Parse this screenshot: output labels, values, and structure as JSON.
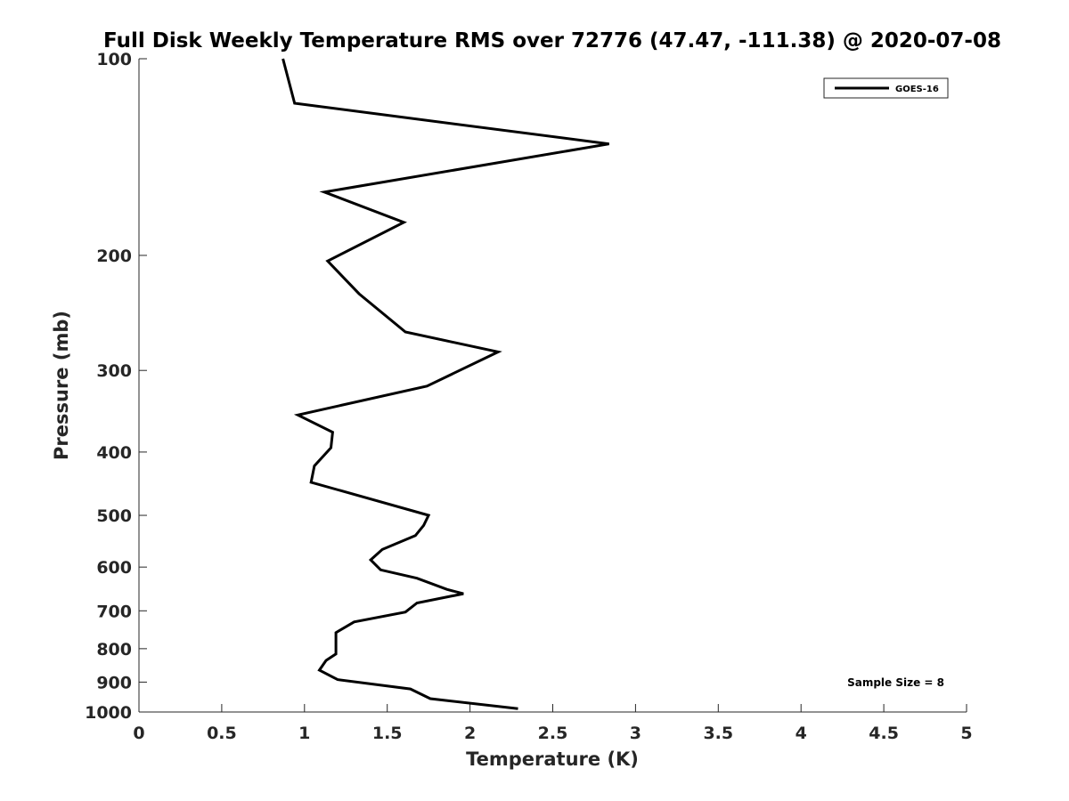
{
  "chart_data": {
    "type": "line",
    "title": "Full Disk Weekly Temperature RMS over 72776 (47.47, -111.38) @ 2020-07-08",
    "xlabel": "Temperature (K)",
    "ylabel": "Pressure (mb)",
    "xlim": [
      0,
      5
    ],
    "ylim": [
      1000,
      100
    ],
    "yscale": "log",
    "y_reversed": true,
    "x_ticks": [
      "0",
      "0.5",
      "1",
      "1.5",
      "2",
      "2.5",
      "3",
      "3.5",
      "4",
      "4.5",
      "5"
    ],
    "y_ticks": [
      "100",
      "200",
      "300",
      "400",
      "500",
      "600",
      "700",
      "800",
      "900",
      "1000"
    ],
    "grid": false,
    "legend_position": "top-right",
    "annotation": "Sample Size = 8",
    "series": [
      {
        "name": "GOES-16",
        "color": "#000000",
        "x": [
          0.87,
          0.94,
          2.84,
          1.12,
          1.6,
          1.14,
          1.33,
          1.61,
          2.17,
          1.74,
          0.96,
          1.17,
          1.16,
          1.06,
          1.04,
          1.75,
          1.72,
          1.67,
          1.47,
          1.4,
          1.46,
          1.68,
          1.86,
          1.96,
          1.68,
          1.61,
          1.3,
          1.19,
          1.19,
          1.19,
          1.13,
          1.09,
          1.2,
          1.64,
          1.76,
          2.29
        ],
        "y": [
          100,
          117,
          135,
          160,
          178,
          204,
          229,
          262,
          281,
          317,
          351,
          373,
          394,
          420,
          445,
          500,
          518,
          537,
          564,
          585,
          606,
          624,
          649,
          659,
          681,
          703,
          728,
          756,
          785,
          815,
          834,
          863,
          892,
          922,
          954,
          988
        ]
      }
    ]
  }
}
